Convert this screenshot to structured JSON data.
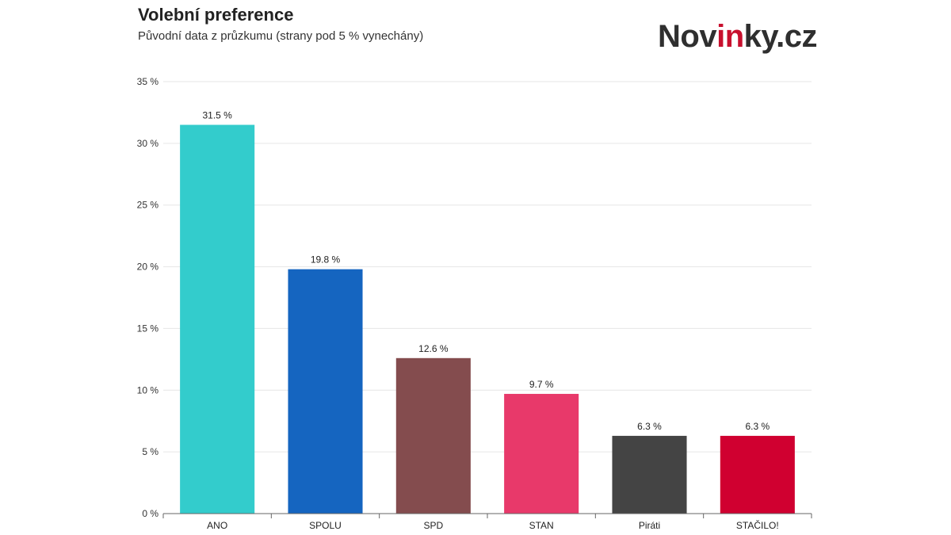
{
  "header": {
    "title": "Volební preference",
    "subtitle": "Původní data z průzkumu (strany pod 5 % vynechány)"
  },
  "logo": {
    "part1": "Nov",
    "part2": "in",
    "part3": "ky.cz",
    "accent_color": "#c8102e"
  },
  "chart_data": {
    "type": "bar",
    "categories": [
      "ANO",
      "SPOLU",
      "SPD",
      "STAN",
      "Piráti",
      "STAČILO!"
    ],
    "values": [
      31.5,
      19.8,
      12.6,
      9.7,
      6.3,
      6.3
    ],
    "value_labels": [
      "31.5 %",
      "19.8 %",
      "12.6 %",
      "9.7 %",
      "6.3 %",
      "6.3 %"
    ],
    "colors": [
      "#33cccc",
      "#1565c0",
      "#844c4e",
      "#e8396a",
      "#444444",
      "#d00030"
    ],
    "ylim": [
      0,
      35
    ],
    "yticks": [
      0,
      5,
      10,
      15,
      20,
      25,
      30,
      35
    ],
    "ytick_labels": [
      "0 %",
      "5 %",
      "10 %",
      "15 %",
      "20 %",
      "25 %",
      "30 %",
      "35 %"
    ],
    "grid": true,
    "legend": "none"
  }
}
